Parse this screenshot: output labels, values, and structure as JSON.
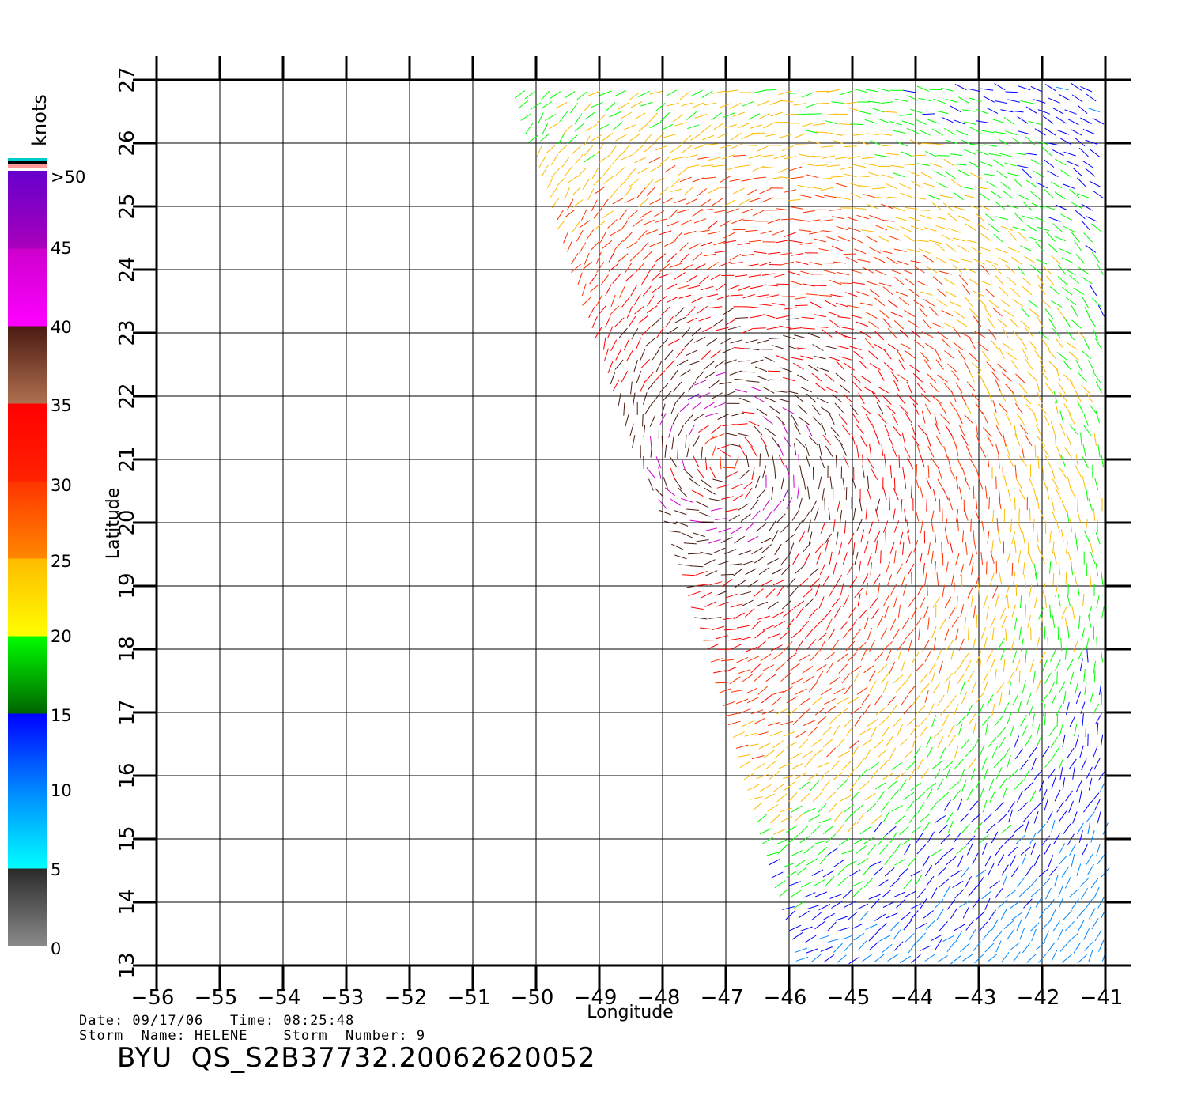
{
  "map": {
    "lon_range": [
      -56,
      -41
    ],
    "lat_range": [
      13,
      27
    ],
    "lon_ticks": [
      "-56",
      "-55",
      "-54",
      "-53",
      "-52",
      "-51",
      "-50",
      "-49",
      "-48",
      "-47",
      "-46",
      "-45",
      "-44",
      "-43",
      "-42",
      "-41"
    ],
    "lat_ticks": [
      "13",
      "14",
      "15",
      "16",
      "17",
      "18",
      "19",
      "20",
      "21",
      "22",
      "23",
      "24",
      "25",
      "26",
      "27"
    ],
    "x_label": "Longitude",
    "y_label": "Latitude",
    "grid": true,
    "swath_edge_west": [
      [
        -50.3,
        27
      ],
      [
        -47.3,
        17.8
      ],
      [
        -45.9,
        13
      ]
    ],
    "storm_center": {
      "lon": -47.0,
      "lat": 21.0
    }
  },
  "legend": {
    "unit": "knots",
    "labels": [
      ">50",
      "45",
      "40",
      "35",
      "30",
      "25",
      "20",
      "15",
      "10",
      "5",
      "0"
    ],
    "bands": [
      {
        "from": 0,
        "to": 5,
        "colors": [
          "#8a8a8a",
          "#2a2a2a"
        ]
      },
      {
        "from": 5,
        "to": 10,
        "colors": [
          "#00ffff",
          "#0088ff"
        ]
      },
      {
        "from": 10,
        "to": 15,
        "colors": [
          "#0088ff",
          "#0000ff"
        ]
      },
      {
        "from": 15,
        "to": 20,
        "colors": [
          "#006400",
          "#00ff00"
        ]
      },
      {
        "from": 20,
        "to": 25,
        "colors": [
          "#ffff00",
          "#ffbb00"
        ]
      },
      {
        "from": 25,
        "to": 30,
        "colors": [
          "#ff8800",
          "#ff3300"
        ]
      },
      {
        "from": 30,
        "to": 35,
        "colors": [
          "#ff2200",
          "#ff0000"
        ]
      },
      {
        "from": 35,
        "to": 40,
        "colors": [
          "#b07050",
          "#4a1a10"
        ]
      },
      {
        "from": 40,
        "to": 45,
        "colors": [
          "#ff00ff",
          "#cc00cc"
        ]
      },
      {
        "from": 45,
        "to": 50,
        "colors": [
          "#aa00bb",
          "#6600cc"
        ]
      }
    ],
    "over_colors": [
      "#ff9999",
      "#000000",
      "#00cccc"
    ]
  },
  "info": {
    "line1": "Date: 09/17/06   Time: 08:25:48",
    "line2": "Storm  Name: HELENE    Storm  Number: 9",
    "product": "BYU  QS_S2B37732.20062620052"
  }
}
